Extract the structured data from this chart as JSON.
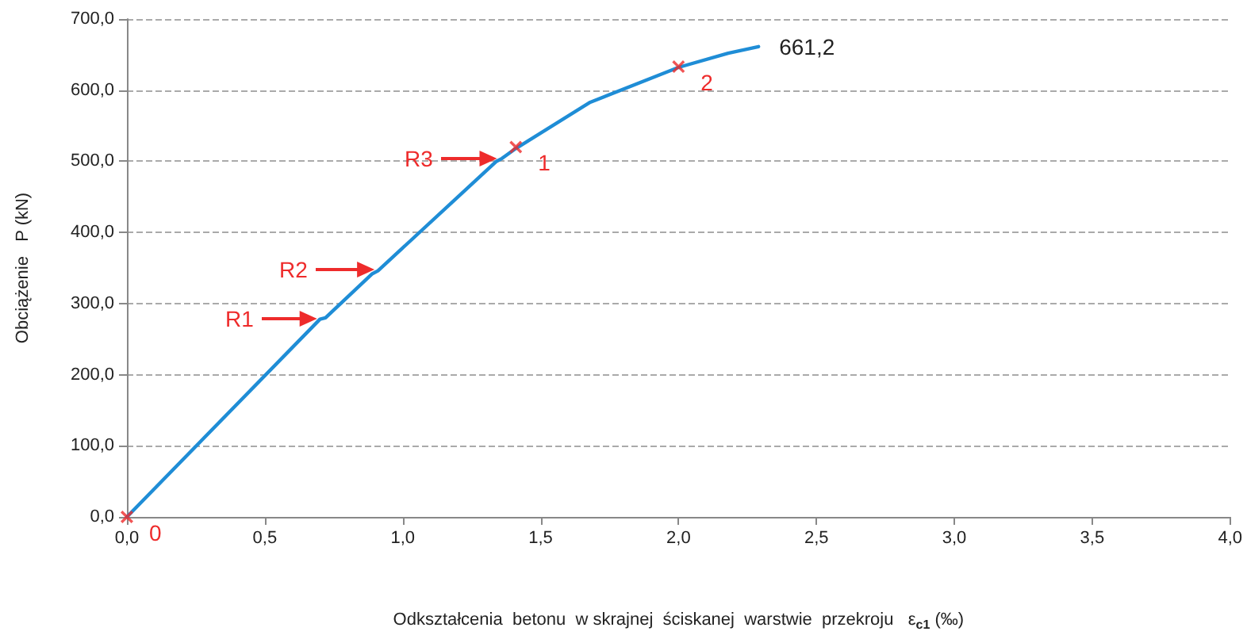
{
  "chart_data": {
    "type": "line",
    "xlabel": "Odkształcenia  betonu  w skrajnej  ściskanej  warstwie  przekroju   ε$_{c1}$ (‰)",
    "ylabel": "Obciążenie   P (kN)",
    "series": [
      {
        "color": "#1f8dd6",
        "x": [
          0,
          0.7,
          0.72,
          0.89,
          0.91,
          1.34,
          1.36,
          1.41,
          1.68,
          2.0,
          2.18,
          2.29
        ],
        "values": [
          0,
          278,
          280,
          342,
          346,
          500,
          504,
          518,
          583,
          632,
          652,
          661.2
        ]
      },
      {
        "type": "scatter",
        "color": "#ee2b2b",
        "marker": "cross",
        "x": [
          0,
          1.41,
          2.0
        ],
        "values": [
          0,
          520,
          633
        ]
      }
    ],
    "annotations": [
      {
        "text": "0",
        "x": 0,
        "y": 0
      },
      "R1",
      "R2",
      "R3",
      {
        "text": "1",
        "x": 1.41,
        "y": 520
      },
      {
        "text": "2",
        "x": 2.0,
        "y": 633
      },
      {
        "text": "661,2",
        "x": 2.29,
        "y": 661.2
      }
    ],
    "xlim": [
      0,
      4
    ],
    "xticks": [
      {
        "value": 0,
        "label": "0,0"
      },
      {
        "value": 0.5,
        "label": "0,5"
      },
      {
        "value": 1,
        "label": "1,0"
      },
      {
        "value": 1.5,
        "label": "1,5"
      },
      {
        "value": 2,
        "label": "2,0"
      },
      {
        "value": 2.5,
        "label": "2,5"
      },
      {
        "value": 3,
        "label": "3,0"
      },
      {
        "value": 3.5,
        "label": "3,5"
      },
      {
        "value": 4,
        "label": "4,0"
      }
    ],
    "ylim": [
      0,
      700
    ],
    "yticks": [
      {
        "value": 0,
        "label": "0,0"
      },
      {
        "value": 100,
        "label": "100,0"
      },
      {
        "value": 200,
        "label": "200,0"
      },
      {
        "value": 300,
        "label": "300,0"
      },
      {
        "value": 400,
        "label": "400,0"
      },
      {
        "value": 500,
        "label": "500,0"
      },
      {
        "value": 600,
        "label": "600,0"
      },
      {
        "value": 700,
        "label": "700,0"
      }
    ],
    "grid": "y",
    "marker": "none",
    "line_style": "solid"
  }
}
